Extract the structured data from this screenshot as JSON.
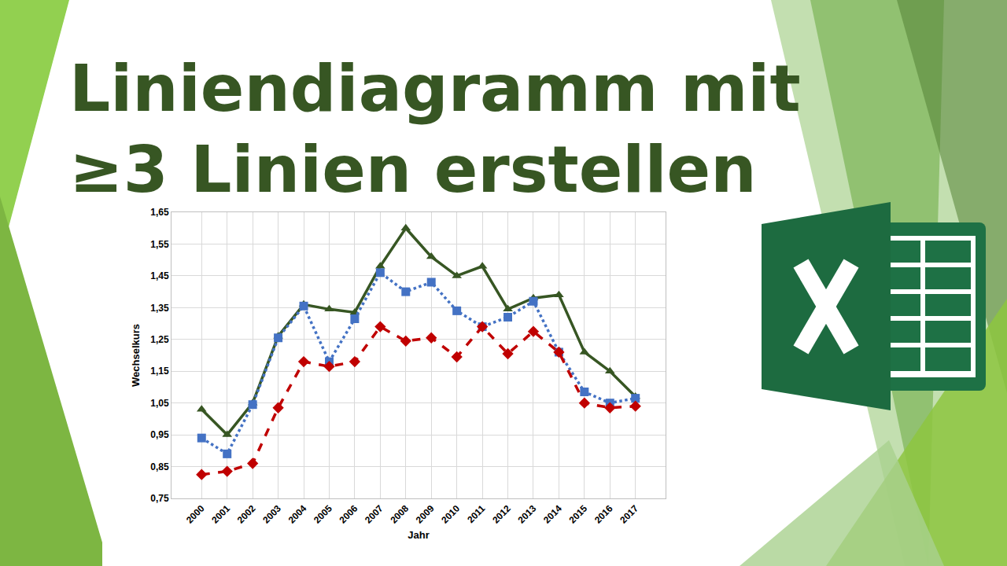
{
  "header": {
    "title_lines": [
      "Liniendiagramm mit",
      "≥3 Linien erstellen"
    ]
  },
  "chart_data": {
    "type": "line",
    "x_label": "Jahr",
    "y_label": "Wechselkurs",
    "categories": [
      "2000",
      "2001",
      "2002",
      "2003",
      "2004",
      "2005",
      "2006",
      "2007",
      "2008",
      "2009",
      "2010",
      "2011",
      "2012",
      "2013",
      "2014",
      "2015",
      "2016",
      "2017"
    ],
    "series": [
      {
        "color": "#375623",
        "marker": "triangle-up",
        "line_style": "solid",
        "values": [
          1.03,
          0.95,
          1.05,
          1.26,
          1.36,
          1.345,
          1.335,
          1.48,
          1.6,
          1.51,
          1.45,
          1.48,
          1.345,
          1.38,
          1.39,
          1.21,
          1.15,
          1.07
        ]
      },
      {
        "color": "#4472C4",
        "marker": "square",
        "line_style": "dot",
        "values": [
          0.94,
          0.89,
          1.045,
          1.255,
          1.355,
          1.18,
          1.315,
          1.46,
          1.4,
          1.43,
          1.34,
          1.29,
          1.32,
          1.37,
          1.21,
          1.085,
          1.05,
          1.065
        ]
      },
      {
        "color": "#C00000",
        "marker": "diamond",
        "line_style": "dash",
        "values": [
          0.825,
          0.835,
          0.86,
          1.035,
          1.18,
          1.165,
          1.18,
          1.29,
          1.245,
          1.255,
          1.195,
          1.29,
          1.205,
          1.275,
          1.21,
          1.05,
          1.035,
          1.04
        ]
      }
    ],
    "ylim": [
      0.75,
      1.65
    ],
    "yticks": [
      {
        "value": 0.75,
        "label": "0,75"
      },
      {
        "value": 0.85,
        "label": "0,85"
      },
      {
        "value": 0.95,
        "label": "0,95"
      },
      {
        "value": 1.05,
        "label": "1,05"
      },
      {
        "value": 1.15,
        "label": "1,15"
      },
      {
        "value": 1.25,
        "label": "1,25"
      },
      {
        "value": 1.35,
        "label": "1,35"
      },
      {
        "value": 1.45,
        "label": "1,45"
      },
      {
        "value": 1.55,
        "label": "1,55"
      },
      {
        "value": 1.65,
        "label": "1,65"
      }
    ],
    "grid": true
  }
}
